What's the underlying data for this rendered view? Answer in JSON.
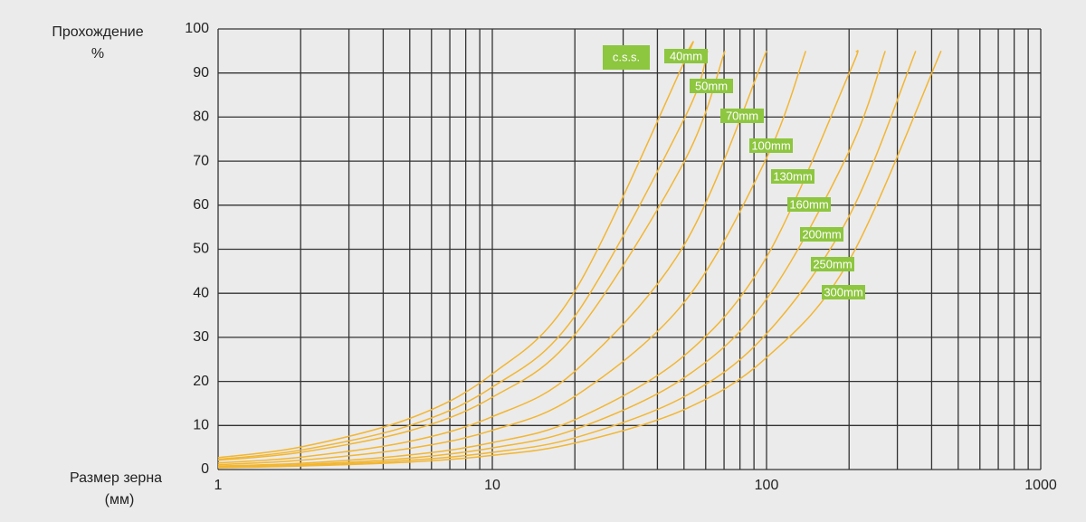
{
  "chart_data": {
    "type": "line",
    "y_label": [
      "Прохождение",
      "%"
    ],
    "x_label": [
      "Размер зерна",
      "(мм)"
    ],
    "legend_title": "c.s.s.",
    "x_log": true,
    "grid": true,
    "x_minor_grid": true,
    "xlim": [
      1,
      1000
    ],
    "xticks": [
      1,
      10,
      100,
      1000
    ],
    "ylim": [
      0,
      100
    ],
    "yticks": [
      0,
      10,
      20,
      30,
      40,
      50,
      60,
      70,
      80,
      90,
      100
    ],
    "label_color": "#8dc63f",
    "series": [
      {
        "name": "40mm",
        "color": "#f2b632",
        "x": [
          1,
          2,
          5,
          10,
          20,
          50,
          51.6
        ],
        "values": [
          2.7,
          5.1,
          11.6,
          21.7,
          40.5,
          92.4,
          95
        ]
      },
      {
        "name": "50mm",
        "color": "#f2b632",
        "x": [
          1,
          2,
          5,
          10,
          20,
          50,
          61
        ],
        "values": [
          2.3,
          4.4,
          10,
          18.7,
          34.8,
          79.5,
          95
        ]
      },
      {
        "name": "70mm",
        "color": "#f2b632",
        "x": [
          1,
          2,
          5,
          10,
          20,
          50,
          70.5
        ],
        "values": [
          2.1,
          3.9,
          8.8,
          16.4,
          30.6,
          69.8,
          95
        ]
      },
      {
        "name": "100mm",
        "color": "#f2b632",
        "x": [
          1,
          2,
          5,
          10,
          20,
          50,
          100
        ],
        "values": [
          1.5,
          2.8,
          6.4,
          12,
          22.3,
          50.9,
          95
        ]
      },
      {
        "name": "130mm",
        "color": "#f2b632",
        "x": [
          1,
          2,
          5,
          10,
          20,
          50,
          100,
          139
        ],
        "values": [
          1.1,
          2.1,
          4.8,
          8.9,
          16.6,
          37.9,
          70.7,
          95
        ]
      },
      {
        "name": "160mm",
        "color": "#f2b632",
        "x": [
          1,
          2,
          5,
          10,
          20,
          50,
          100,
          200,
          213
        ],
        "values": [
          0.8,
          1.4,
          3.3,
          6.1,
          11.3,
          25.8,
          48.2,
          89.9,
          95
        ]
      },
      {
        "name": "200mm",
        "color": "#f2b632",
        "x": [
          1,
          2,
          5,
          10,
          20,
          50,
          100,
          200,
          271
        ],
        "values": [
          0.6,
          1.1,
          2.6,
          4.9,
          9.1,
          20.8,
          38.7,
          72.2,
          95
        ]
      },
      {
        "name": "250mm",
        "color": "#f2b632",
        "x": [
          1,
          2,
          5,
          10,
          20,
          50,
          100,
          200,
          350
        ],
        "values": [
          0.5,
          0.9,
          2.1,
          3.9,
          7.2,
          16.5,
          30.8,
          57.5,
          95
        ]
      },
      {
        "name": "300mm",
        "color": "#f2b632",
        "x": [
          1,
          2,
          5,
          10,
          20,
          50,
          100,
          200,
          433
        ],
        "values": [
          0.4,
          0.8,
          1.7,
          3.2,
          6,
          13.6,
          25.4,
          47.4,
          95
        ]
      }
    ]
  }
}
